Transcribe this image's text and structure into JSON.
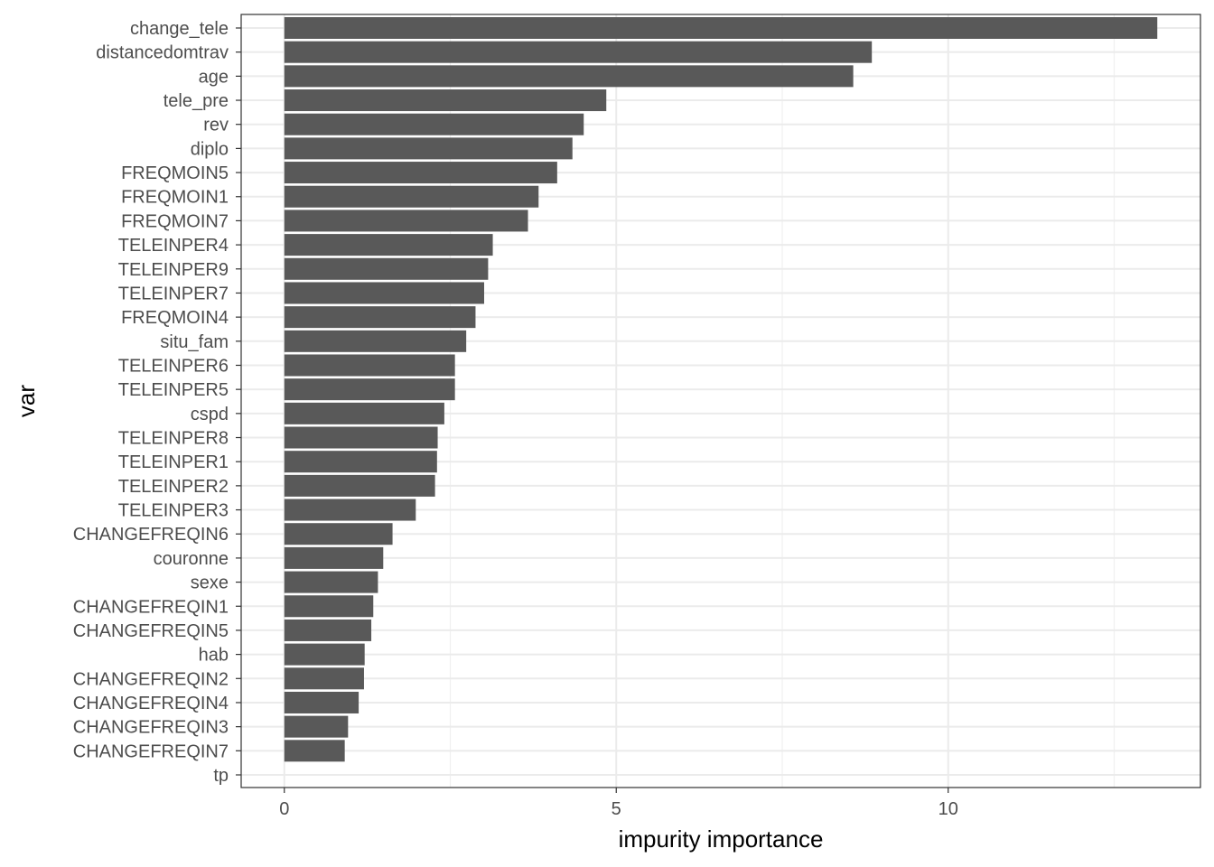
{
  "chart_data": {
    "type": "bar",
    "orientation": "horizontal",
    "xlabel": "impurity importance",
    "ylabel": "var",
    "xlim": [
      -0.65,
      13.8
    ],
    "xticks": [
      0,
      5,
      10
    ],
    "grid": true,
    "bar_color": "#595959",
    "categories": [
      "change_tele",
      "distancedomtrav",
      "age",
      "tele_pre",
      "rev",
      "diplo",
      "FREQMOIN5",
      "FREQMOIN1",
      "FREQMOIN7",
      "TELEINPER4",
      "TELEINPER9",
      "TELEINPER7",
      "FREQMOIN4",
      "situ_fam",
      "TELEINPER6",
      "TELEINPER5",
      "cspd",
      "TELEINPER8",
      "TELEINPER1",
      "TELEINPER2",
      "TELEINPER3",
      "CHANGEFREQIN6",
      "couronne",
      "sexe",
      "CHANGEFREQIN1",
      "CHANGEFREQIN5",
      "hab",
      "CHANGEFREQIN2",
      "CHANGEFREQIN4",
      "CHANGEFREQIN3",
      "CHANGEFREQIN7",
      "tp"
    ],
    "values": [
      13.15,
      8.85,
      8.57,
      4.85,
      4.51,
      4.34,
      4.11,
      3.83,
      3.67,
      3.14,
      3.07,
      3.01,
      2.88,
      2.74,
      2.57,
      2.57,
      2.41,
      2.31,
      2.3,
      2.27,
      1.98,
      1.63,
      1.49,
      1.41,
      1.34,
      1.31,
      1.21,
      1.2,
      1.12,
      0.96,
      0.91,
      0.0
    ]
  }
}
